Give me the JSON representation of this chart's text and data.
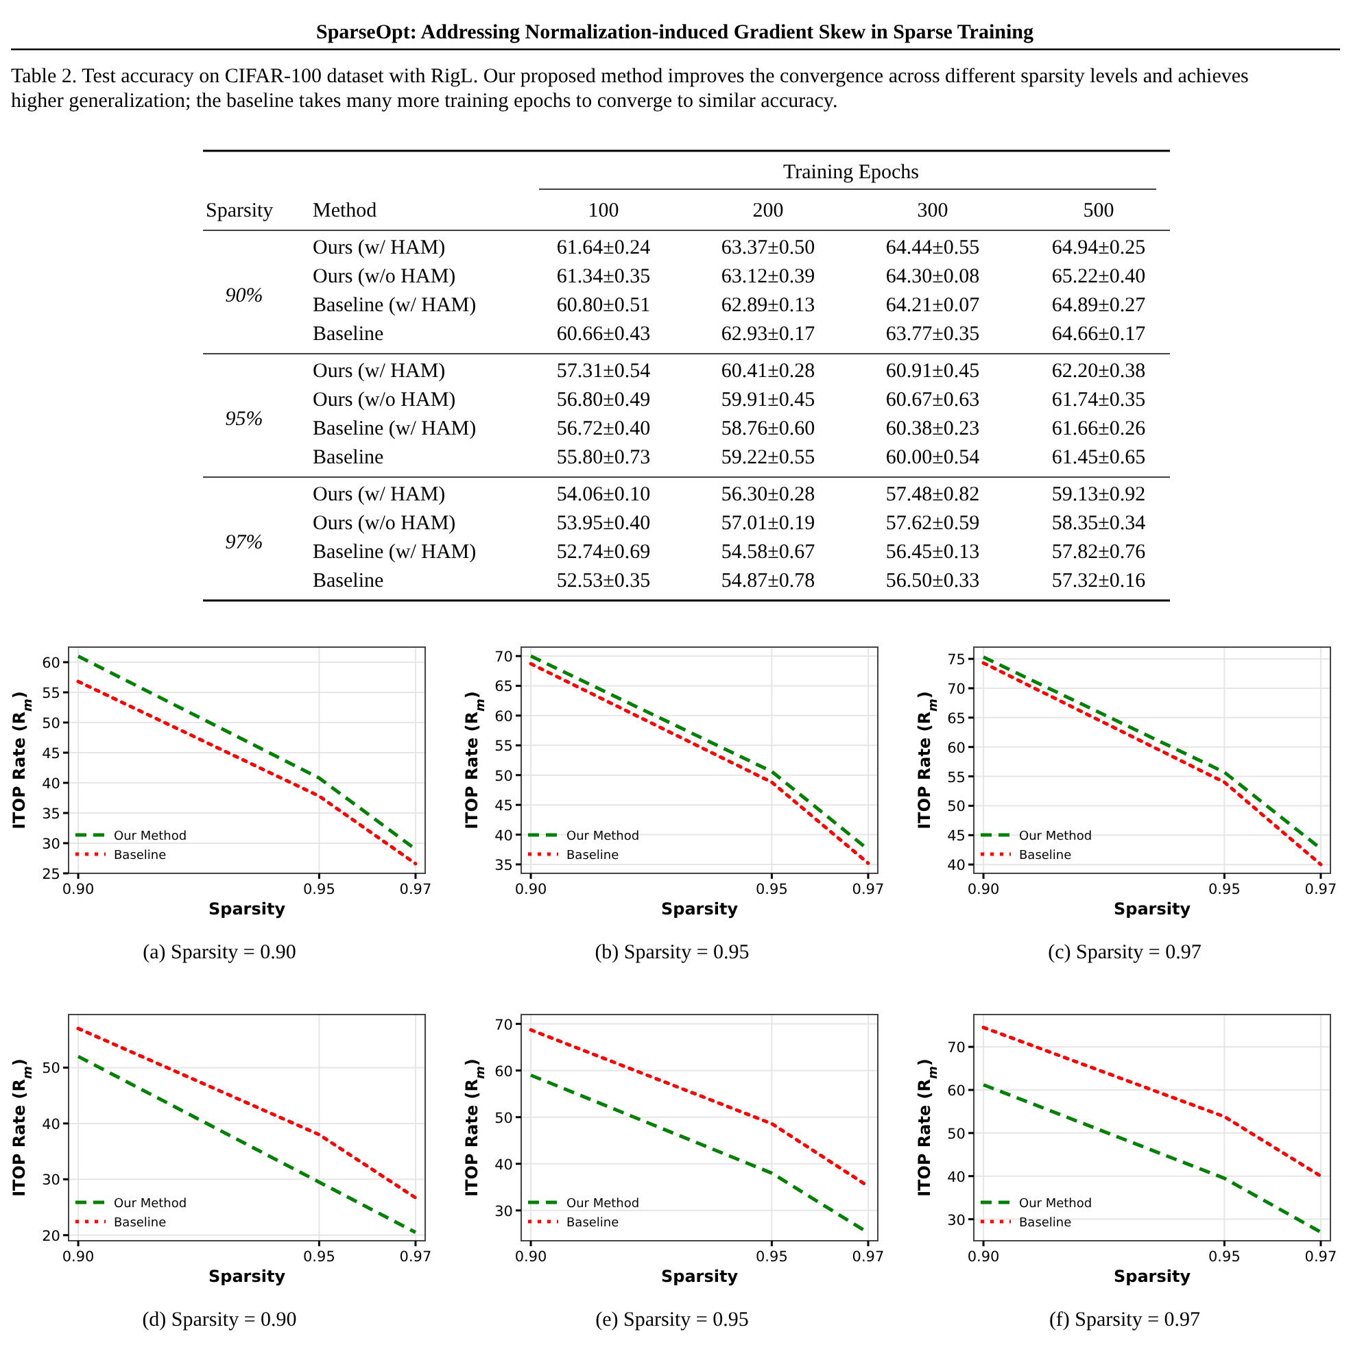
{
  "chart_data": [
    {
      "type": "other",
      "title": "SparseOpt: Addressing Normalization-induced Gradient Skew in Sparse Training",
      "subtitle": "Table 2. Test accuracy on CIFAR-100 dataset with RigL. Our proposed method improves the convergence across different sparsity levels and achieves higher generalization; the baseline takes many more training epochs to converge to similar accuracy.",
      "annotations": [
        "Training Epochs",
        "Sparsity",
        "Method",
        "100",
        "200",
        "300",
        "500",
        "90%",
        "Ours (w/ HAM)",
        "61.64±0.24",
        "63.37±0.50",
        "64.44±0.55",
        "64.94±0.25",
        "Ours (w/o HAM)",
        "61.34±0.35",
        "63.12±0.39",
        "64.30±0.08",
        "65.22±0.40",
        "Baseline (w/ HAM)",
        "60.80±0.51",
        "62.89±0.13",
        "64.21±0.07",
        "64.89±0.27",
        "Baseline",
        "60.66±0.43",
        "62.93±0.17",
        "63.77±0.35",
        "64.66±0.17",
        "95%",
        "Ours (w/ HAM)",
        "57.31±0.54",
        "60.41±0.28",
        "60.91±0.45",
        "62.20±0.38",
        "Ours (w/o HAM)",
        "56.80±0.49",
        "59.91±0.45",
        "60.67±0.63",
        "61.74±0.35",
        "Baseline (w/ HAM)",
        "56.72±0.40",
        "58.76±0.60",
        "60.38±0.23",
        "61.66±0.26",
        "Baseline",
        "55.80±0.73",
        "59.22±0.55",
        "60.00±0.54",
        "61.45±0.65",
        "97%",
        "Ours (w/ HAM)",
        "54.06±0.10",
        "56.30±0.28",
        "57.48±0.82",
        "59.13±0.92",
        "Ours (w/o HAM)",
        "53.95±0.40",
        "57.01±0.19",
        "57.62±0.59",
        "58.35±0.34",
        "Baseline (w/ HAM)",
        "52.74±0.69",
        "54.58±0.67",
        "56.45±0.13",
        "57.82±0.76",
        "Baseline",
        "52.53±0.35",
        "54.87±0.78",
        "56.50±0.33",
        "57.32±0.16"
      ]
    },
    {
      "type": "line",
      "title": "(a) Sparsity = 0.90",
      "xlabel": "Sparsity",
      "ylabel": "ITOP Rate (R$_{m}$)",
      "x": [
        0.9,
        0.95,
        0.97
      ],
      "xlim": [
        0.898,
        0.972
      ],
      "xticks": [
        {
          "value": 0.9,
          "label": "0.90"
        },
        {
          "value": 0.95,
          "label": "0.95"
        },
        {
          "value": 0.97,
          "label": "0.97"
        }
      ],
      "ylim": [
        25,
        62.5
      ],
      "yticks": [
        25,
        30,
        35,
        40,
        45,
        50,
        55,
        60
      ],
      "grid": true,
      "legend": "bottom left",
      "marker": "none",
      "series": [
        {
          "name": "Our Method",
          "color": "#008000",
          "line_style": "dashed",
          "values": [
            61,
            40.8,
            29
          ]
        },
        {
          "name": "Baseline",
          "color": "#ff0000",
          "line_style": "dotted",
          "values": [
            56.8,
            37.8,
            26.6
          ]
        }
      ]
    },
    {
      "type": "line",
      "title": "(b) Sparsity = 0.95",
      "xlabel": "Sparsity",
      "ylabel": "ITOP Rate (R$_{m}$)",
      "x": [
        0.9,
        0.95,
        0.97
      ],
      "xlim": [
        0.898,
        0.972
      ],
      "xticks": [
        {
          "value": 0.9,
          "label": "0.90"
        },
        {
          "value": 0.95,
          "label": "0.95"
        },
        {
          "value": 0.97,
          "label": "0.97"
        }
      ],
      "ylim": [
        33.5,
        71.5
      ],
      "yticks": [
        35,
        40,
        45,
        50,
        55,
        60,
        65,
        70
      ],
      "grid": true,
      "legend": "bottom left",
      "marker": "none",
      "series": [
        {
          "name": "Our Method",
          "color": "#008000",
          "line_style": "dashed",
          "values": [
            70,
            50.6,
            37.5
          ]
        },
        {
          "name": "Baseline",
          "color": "#ff0000",
          "line_style": "dotted",
          "values": [
            68.7,
            48.8,
            35.2
          ]
        }
      ]
    },
    {
      "type": "line",
      "title": "(c) Sparsity = 0.97",
      "xlabel": "Sparsity",
      "ylabel": "ITOP Rate (R$_{m}$)",
      "x": [
        0.9,
        0.95,
        0.97
      ],
      "xlim": [
        0.898,
        0.972
      ],
      "xticks": [
        {
          "value": 0.9,
          "label": "0.90"
        },
        {
          "value": 0.95,
          "label": "0.95"
        },
        {
          "value": 0.97,
          "label": "0.97"
        }
      ],
      "ylim": [
        38.5,
        77
      ],
      "yticks": [
        40,
        45,
        50,
        55,
        60,
        65,
        70,
        75
      ],
      "grid": true,
      "legend": "bottom left",
      "marker": "none",
      "series": [
        {
          "name": "Our Method",
          "color": "#008000",
          "line_style": "dashed",
          "values": [
            75.3,
            55.7,
            42.7
          ]
        },
        {
          "name": "Baseline",
          "color": "#ff0000",
          "line_style": "dotted",
          "values": [
            74.3,
            54,
            40
          ]
        }
      ]
    },
    {
      "type": "line",
      "title": "(d) Sparsity = 0.90",
      "xlabel": "Sparsity",
      "ylabel": "ITOP Rate (R$_{m}$)",
      "x": [
        0.9,
        0.95,
        0.97
      ],
      "xlim": [
        0.898,
        0.972
      ],
      "xticks": [
        {
          "value": 0.9,
          "label": "0.90"
        },
        {
          "value": 0.95,
          "label": "0.95"
        },
        {
          "value": 0.97,
          "label": "0.97"
        }
      ],
      "ylim": [
        19,
        59.5
      ],
      "yticks": [
        20,
        30,
        40,
        50
      ],
      "grid": true,
      "legend": "bottom left",
      "marker": "none",
      "series": [
        {
          "name": "Our Method",
          "color": "#008000",
          "line_style": "dashed",
          "values": [
            52,
            29.5,
            20.5
          ]
        },
        {
          "name": "Baseline",
          "color": "#ff0000",
          "line_style": "dotted",
          "values": [
            57,
            38,
            26.7
          ]
        }
      ]
    },
    {
      "type": "line",
      "title": "(e) Sparsity = 0.95",
      "xlabel": "Sparsity",
      "ylabel": "ITOP Rate (R$_{m}$)",
      "x": [
        0.9,
        0.95,
        0.97
      ],
      "xlim": [
        0.898,
        0.972
      ],
      "xticks": [
        {
          "value": 0.9,
          "label": "0.90"
        },
        {
          "value": 0.95,
          "label": "0.95"
        },
        {
          "value": 0.97,
          "label": "0.97"
        }
      ],
      "ylim": [
        23.5,
        72
      ],
      "yticks": [
        30,
        40,
        50,
        60,
        70
      ],
      "grid": true,
      "legend": "bottom left",
      "marker": "none",
      "series": [
        {
          "name": "Our Method",
          "color": "#008000",
          "line_style": "dashed",
          "values": [
            59,
            38,
            25.2
          ]
        },
        {
          "name": "Baseline",
          "color": "#ff0000",
          "line_style": "dotted",
          "values": [
            68.7,
            48.6,
            35.2
          ]
        }
      ]
    },
    {
      "type": "line",
      "title": "(f) Sparsity = 0.97",
      "xlabel": "Sparsity",
      "ylabel": "ITOP Rate (R$_{m}$)",
      "x": [
        0.9,
        0.95,
        0.97
      ],
      "xlim": [
        0.898,
        0.972
      ],
      "xticks": [
        {
          "value": 0.9,
          "label": "0.90"
        },
        {
          "value": 0.95,
          "label": "0.95"
        },
        {
          "value": 0.97,
          "label": "0.97"
        }
      ],
      "ylim": [
        25,
        77.5
      ],
      "yticks": [
        30,
        40,
        50,
        60,
        70
      ],
      "grid": true,
      "legend": "bottom left",
      "marker": "none",
      "series": [
        {
          "name": "Our Method",
          "color": "#008000",
          "line_style": "dashed",
          "values": [
            61.2,
            39.5,
            27
          ]
        },
        {
          "name": "Baseline",
          "color": "#ff0000",
          "line_style": "dotted",
          "values": [
            74.5,
            53.8,
            40
          ]
        }
      ]
    }
  ]
}
